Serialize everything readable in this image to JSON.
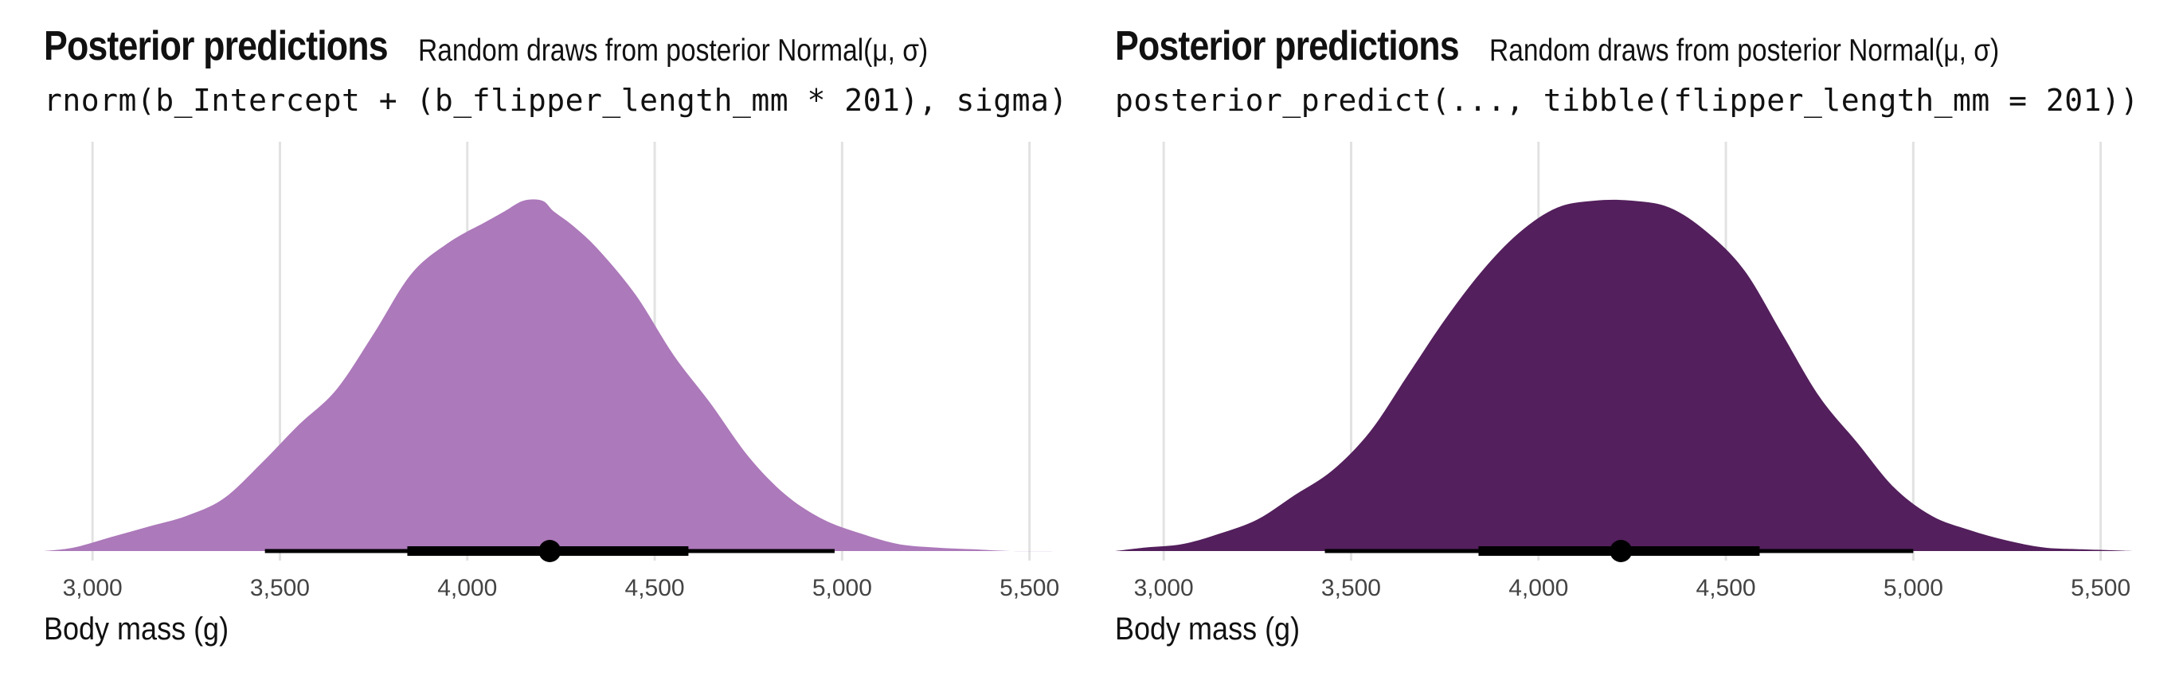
{
  "chart_data": [
    {
      "type": "area",
      "title": "Posterior predictions",
      "subtitle": "Random draws from posterior Normal(μ, σ)",
      "code_caption": "rnorm(b_Intercept + (b_flipper_length_mm * 201), sigma)",
      "xlabel": "Body mass (g)",
      "ylabel": "",
      "xlim": [
        2870,
        5590
      ],
      "x_ticks": [
        3000,
        3500,
        4000,
        4500,
        5000,
        5500
      ],
      "x_tick_labels": [
        "3,000",
        "3,500",
        "4,000",
        "4,500",
        "5,000",
        "5,500"
      ],
      "grid": "vertical major",
      "fill_color": "#AC79BA",
      "density": {
        "x": [
          2870,
          2950,
          3050,
          3150,
          3250,
          3350,
          3450,
          3550,
          3650,
          3750,
          3850,
          3950,
          4050,
          4100,
          4150,
          4200,
          4230,
          4280,
          4350,
          4450,
          4550,
          4650,
          4750,
          4850,
          4950,
          5050,
          5150,
          5250,
          5350,
          5450,
          5590
        ],
        "y": [
          0.0,
          0.01,
          0.04,
          0.07,
          0.1,
          0.15,
          0.25,
          0.36,
          0.46,
          0.62,
          0.79,
          0.88,
          0.94,
          0.97,
          1.0,
          1.0,
          0.97,
          0.93,
          0.86,
          0.73,
          0.56,
          0.42,
          0.27,
          0.16,
          0.09,
          0.05,
          0.02,
          0.01,
          0.005,
          0.0,
          0.0
        ]
      },
      "interval_color": "#000000",
      "point": 4220,
      "interval_66": [
        3840,
        4590
      ],
      "interval_95": [
        3460,
        4980
      ]
    },
    {
      "type": "area",
      "title": "Posterior predictions",
      "subtitle": "Random draws from posterior Normal(μ, σ)",
      "code_caption": "posterior_predict(..., tibble(flipper_length_mm = 201))",
      "xlabel": "Body mass (g)",
      "ylabel": "",
      "xlim": [
        2870,
        5590
      ],
      "x_ticks": [
        3000,
        3500,
        4000,
        4500,
        5000,
        5500
      ],
      "x_tick_labels": [
        "3,000",
        "3,500",
        "4,000",
        "4,500",
        "5,000",
        "5,500"
      ],
      "grid": "vertical major",
      "fill_color": "#531F5C",
      "density": {
        "x": [
          2870,
          2950,
          3050,
          3150,
          3250,
          3350,
          3450,
          3550,
          3650,
          3750,
          3850,
          3950,
          4050,
          4150,
          4250,
          4350,
          4450,
          4550,
          4650,
          4750,
          4850,
          4950,
          5050,
          5150,
          5250,
          5350,
          5450,
          5590
        ],
        "y": [
          0.0,
          0.01,
          0.02,
          0.05,
          0.09,
          0.16,
          0.23,
          0.34,
          0.5,
          0.66,
          0.8,
          0.91,
          0.98,
          1.0,
          1.0,
          0.98,
          0.91,
          0.8,
          0.62,
          0.44,
          0.31,
          0.18,
          0.1,
          0.06,
          0.03,
          0.01,
          0.005,
          0.0
        ]
      },
      "interval_color": "#000000",
      "point": 4220,
      "interval_66": [
        3840,
        4590
      ],
      "interval_95": [
        3430,
        5000
      ]
    }
  ]
}
